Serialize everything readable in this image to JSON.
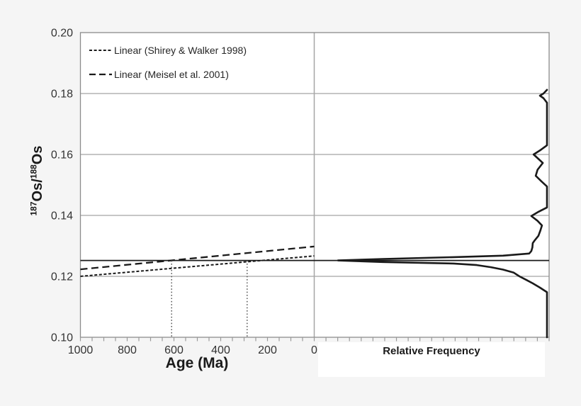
{
  "figure": {
    "background": "#f5f5f5",
    "plot_background": "#ffffff",
    "frame_color": "#8c8c8c",
    "grid_color": "#8c8c8c",
    "divider_color": "#a6a6a6",
    "data_line_color": "#1a1a1a",
    "tick_color": "#999999"
  },
  "legend": {
    "items": [
      {
        "label": "Linear (Shirey & Walker 1998)",
        "style": "dotted"
      },
      {
        "label": "Linear (Meisel et al. 2001)",
        "style": "dashed"
      }
    ]
  },
  "axes": {
    "y_title_parts": {
      "sup_a": "187",
      "base_a": "Os/",
      "sup_b": "188",
      "base_b": "Os"
    },
    "x_title": "Age (Ma)",
    "freq_title": "Relative Frequency",
    "y_tick_labels": [
      "0.20",
      "0.18",
      "0.16",
      "0.14",
      "0.12",
      "0.10"
    ],
    "x_tick_labels": [
      "1000",
      "800",
      "600",
      "400",
      "200",
      "0"
    ]
  },
  "chart_data": {
    "type": "line",
    "title": "",
    "panels": [
      {
        "name": "osmium-isotope-evolution",
        "xlabel": "Age (Ma)",
        "ylabel": "187Os/188Os",
        "x_range": [
          1000,
          0
        ],
        "x_reversed": true,
        "ylim": [
          0.1,
          0.2
        ],
        "y_gridlines": [
          0.12,
          0.14,
          0.16,
          0.18
        ],
        "x_minor_tick_step_Ma": 50,
        "x_major_tick_step_Ma": 200,
        "grid": true,
        "legend_position": "top-left-inside",
        "series": [
          {
            "name": "Linear (Shirey & Walker 1998)",
            "style": "dotted",
            "x": [
              1000,
              0
            ],
            "y": [
              0.12,
              0.1267
            ]
          },
          {
            "name": "Linear (Meisel et al. 2001)",
            "style": "dashed",
            "x": [
              1000,
              0
            ],
            "y": [
              0.1223,
              0.1298
            ]
          }
        ],
        "horizontal_reference_line_y": 0.1252,
        "vertical_dotted_lines_Ma": [
          610,
          287
        ]
      },
      {
        "name": "relative-frequency-distribution",
        "xlabel": "Relative Frequency",
        "orientation": "frequency increases leftward from right edge",
        "ylim": [
          0.1,
          0.2
        ],
        "horizontal_reference_line_y": 0.1252,
        "points_ratio_vs_relfreq": [
          [
            0.1812,
            0.0
          ],
          [
            0.18,
            0.017
          ],
          [
            0.1793,
            0.034
          ],
          [
            0.1785,
            0.017
          ],
          [
            0.177,
            0.0
          ],
          [
            0.163,
            0.0
          ],
          [
            0.1615,
            0.03
          ],
          [
            0.16,
            0.064
          ],
          [
            0.1585,
            0.04
          ],
          [
            0.1572,
            0.02
          ],
          [
            0.155,
            0.045
          ],
          [
            0.153,
            0.054
          ],
          [
            0.1512,
            0.027
          ],
          [
            0.1495,
            0.0
          ],
          [
            0.1426,
            0.0
          ],
          [
            0.1412,
            0.04
          ],
          [
            0.1398,
            0.075
          ],
          [
            0.1382,
            0.045
          ],
          [
            0.1367,
            0.024
          ],
          [
            0.135,
            0.032
          ],
          [
            0.1333,
            0.041
          ],
          [
            0.1317,
            0.06
          ],
          [
            0.1309,
            0.068
          ],
          [
            0.1295,
            0.07
          ],
          [
            0.1283,
            0.075
          ],
          [
            0.1275,
            0.085
          ],
          [
            0.1268,
            0.21
          ],
          [
            0.1263,
            0.447
          ],
          [
            0.1257,
            0.786
          ],
          [
            0.1252,
            1.0
          ],
          [
            0.1247,
            0.786
          ],
          [
            0.1242,
            0.447
          ],
          [
            0.1237,
            0.336
          ],
          [
            0.123,
            0.268
          ],
          [
            0.1222,
            0.21
          ],
          [
            0.1212,
            0.159
          ],
          [
            0.12,
            0.132
          ],
          [
            0.1188,
            0.098
          ],
          [
            0.1177,
            0.068
          ],
          [
            0.1163,
            0.034
          ],
          [
            0.1148,
            0.0
          ],
          [
            0.1,
            0.0
          ]
        ]
      }
    ]
  }
}
